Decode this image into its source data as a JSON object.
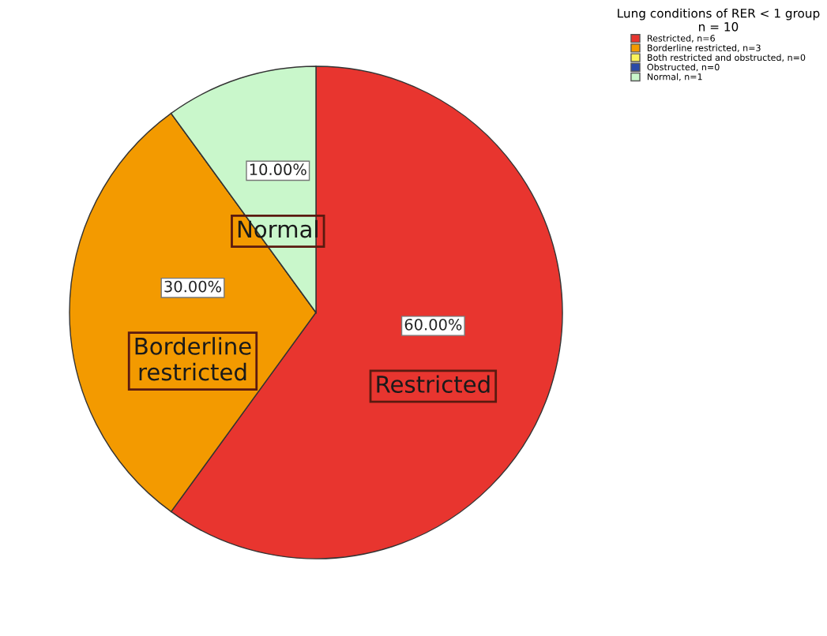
{
  "chart_data": {
    "type": "pie",
    "categories": [
      "Restricted, n=6",
      "Borderline restricted, n=3",
      "Both restricted and obstructed, n=0",
      "Obstructed, n=0",
      "Normal, n=1"
    ],
    "values": [
      60,
      30,
      0,
      0,
      10
    ],
    "colors": [
      "#e8352f",
      "#f39a00",
      "#fbf35a",
      "#2b4aa8",
      "#c9f7cb"
    ],
    "value_labels": [
      "60.00%",
      "30.00%",
      null,
      null,
      "10.00%"
    ],
    "annotations": [
      {
        "text": "Restricted",
        "x": "Restricted, n=6"
      },
      {
        "text": "Borderline\nrestricted",
        "x": "Borderline restricted, n=3"
      },
      {
        "text": "Normal",
        "x": "Normal, n=1"
      }
    ],
    "legend_title": "Lung conditions of RER < 1 group\nn = 10",
    "legend": "top right"
  }
}
